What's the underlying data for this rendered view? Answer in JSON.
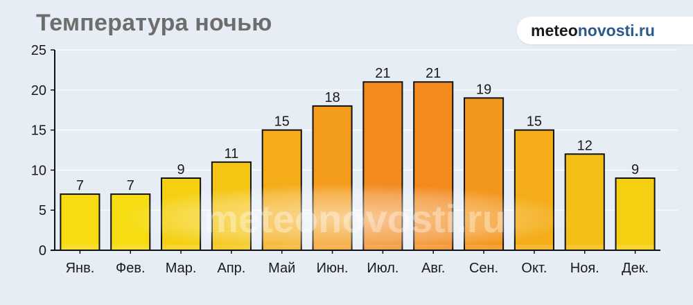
{
  "page": {
    "title": "Температура ночью",
    "brand_part1": "meteo",
    "brand_part2": "novosti.ru",
    "watermark": "meteonovosti.ru"
  },
  "colors": {
    "background": "#e6edf5",
    "bar_low": "#f6dc10",
    "bar_high": "#f28a1e",
    "bar_border": "#111111",
    "axis": "#111111",
    "grid": "#ffffff"
  },
  "chart_data": {
    "type": "bar",
    "title": "Температура ночью",
    "xlabel": "",
    "ylabel": "",
    "categories": [
      "Янв.",
      "Фев.",
      "Мар.",
      "Апр.",
      "Май",
      "Июн.",
      "Июл.",
      "Авг.",
      "Сен.",
      "Окт.",
      "Ноя.",
      "Дек."
    ],
    "values": [
      7,
      7,
      9,
      11,
      15,
      18,
      21,
      21,
      19,
      15,
      12,
      9
    ],
    "data_labels": [
      "7",
      "7",
      "9",
      "11",
      "15",
      "18",
      "21",
      "21",
      "19",
      "15",
      "12",
      "9"
    ],
    "ylim": [
      0,
      25
    ],
    "yticks": [
      0,
      5,
      10,
      15,
      20,
      25
    ],
    "ytick_labels": [
      "0",
      "5",
      "10",
      "15",
      "20",
      "25"
    ],
    "grid": true
  }
}
